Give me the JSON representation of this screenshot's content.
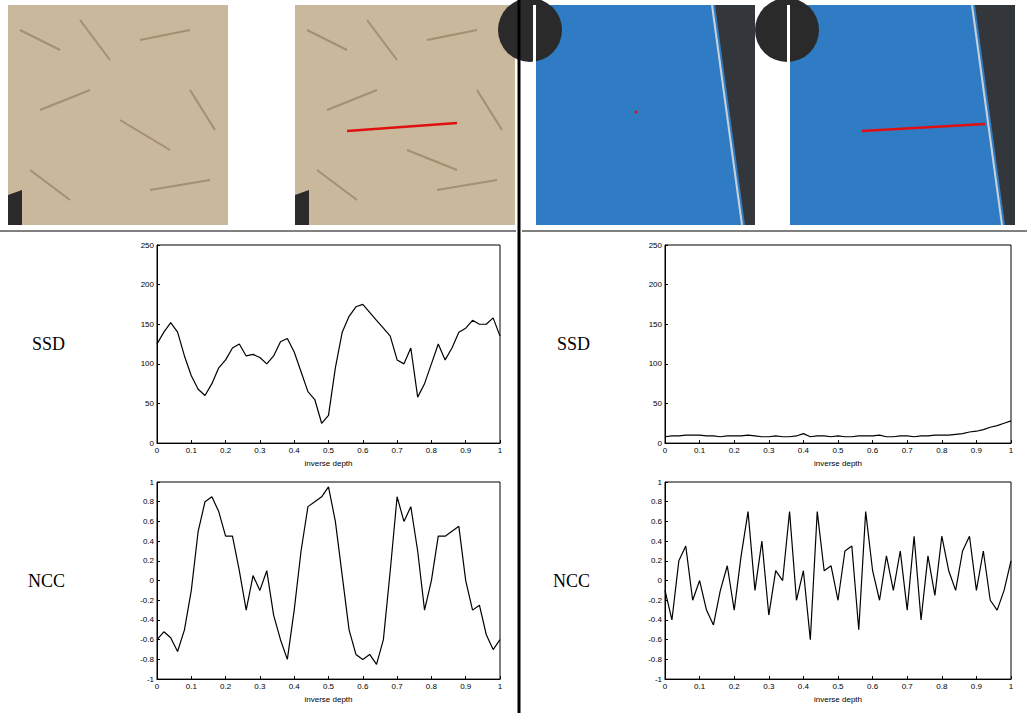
{
  "chart_data": [
    {
      "type": "line",
      "ylabel": "SSD",
      "xlabel": "inverse depth",
      "color": "#000000",
      "grid": false,
      "x": [
        0,
        0.02,
        0.04,
        0.06,
        0.08,
        0.1,
        0.12,
        0.14,
        0.16,
        0.18,
        0.2,
        0.22,
        0.24,
        0.26,
        0.28,
        0.3,
        0.32,
        0.34,
        0.36,
        0.38,
        0.4,
        0.42,
        0.44,
        0.46,
        0.48,
        0.5,
        0.52,
        0.54,
        0.56,
        0.58,
        0.6,
        0.62,
        0.64,
        0.66,
        0.68,
        0.7,
        0.72,
        0.74,
        0.76,
        0.78,
        0.8,
        0.82,
        0.84,
        0.86,
        0.88,
        0.9,
        0.92,
        0.94,
        0.96,
        0.98,
        1
      ],
      "values": [
        125,
        140,
        152,
        140,
        110,
        85,
        68,
        60,
        75,
        95,
        105,
        120,
        125,
        110,
        112,
        108,
        100,
        110,
        128,
        132,
        115,
        90,
        65,
        55,
        25,
        35,
        95,
        140,
        160,
        172,
        175,
        165,
        155,
        145,
        135,
        105,
        100,
        120,
        58,
        75,
        100,
        125,
        105,
        120,
        140,
        145,
        155,
        150,
        150,
        158,
        135
      ],
      "xlim": [
        0,
        1
      ],
      "xticks": [
        0,
        0.1,
        0.2,
        0.3,
        0.4,
        0.5,
        0.6,
        0.7,
        0.8,
        0.9,
        1
      ],
      "ylim": [
        0,
        250
      ],
      "yticks": [
        0,
        50,
        100,
        150,
        200,
        250
      ]
    },
    {
      "type": "line",
      "ylabel": "NCC",
      "xlabel": "inverse depth",
      "color": "#000000",
      "grid": false,
      "x": [
        0,
        0.02,
        0.04,
        0.06,
        0.08,
        0.1,
        0.12,
        0.14,
        0.16,
        0.18,
        0.2,
        0.22,
        0.24,
        0.26,
        0.28,
        0.3,
        0.32,
        0.34,
        0.36,
        0.38,
        0.4,
        0.42,
        0.44,
        0.46,
        0.48,
        0.5,
        0.52,
        0.54,
        0.56,
        0.58,
        0.6,
        0.62,
        0.64,
        0.66,
        0.68,
        0.7,
        0.72,
        0.74,
        0.76,
        0.78,
        0.8,
        0.82,
        0.84,
        0.86,
        0.88,
        0.9,
        0.92,
        0.94,
        0.96,
        0.98,
        1
      ],
      "values": [
        -0.6,
        -0.52,
        -0.58,
        -0.72,
        -0.5,
        -0.1,
        0.5,
        0.8,
        0.85,
        0.7,
        0.45,
        0.45,
        0.1,
        -0.3,
        0.05,
        -0.1,
        0.1,
        -0.35,
        -0.6,
        -0.8,
        -0.3,
        0.3,
        0.75,
        0.8,
        0.85,
        0.95,
        0.6,
        0.05,
        -0.5,
        -0.75,
        -0.8,
        -0.75,
        -0.85,
        -0.6,
        0.1,
        0.85,
        0.6,
        0.75,
        0.3,
        -0.3,
        0.0,
        0.45,
        0.45,
        0.5,
        0.55,
        0.0,
        -0.3,
        -0.25,
        -0.55,
        -0.7,
        -0.6
      ],
      "xlim": [
        0,
        1
      ],
      "xticks": [
        0,
        0.1,
        0.2,
        0.3,
        0.4,
        0.5,
        0.6,
        0.7,
        0.8,
        0.9,
        1
      ],
      "ylim": [
        -1,
        1
      ],
      "yticks": [
        -1,
        -0.8,
        -0.6,
        -0.4,
        -0.2,
        0,
        0.2,
        0.4,
        0.6,
        0.8,
        1
      ]
    },
    {
      "type": "line",
      "ylabel": "SSD",
      "xlabel": "inverse depth",
      "color": "#000000",
      "grid": false,
      "x": [
        0,
        0.02,
        0.04,
        0.06,
        0.08,
        0.1,
        0.12,
        0.14,
        0.16,
        0.18,
        0.2,
        0.22,
        0.24,
        0.26,
        0.28,
        0.3,
        0.32,
        0.34,
        0.36,
        0.38,
        0.4,
        0.42,
        0.44,
        0.46,
        0.48,
        0.5,
        0.52,
        0.54,
        0.56,
        0.58,
        0.6,
        0.62,
        0.64,
        0.66,
        0.68,
        0.7,
        0.72,
        0.74,
        0.76,
        0.78,
        0.8,
        0.82,
        0.84,
        0.86,
        0.88,
        0.9,
        0.92,
        0.94,
        0.96,
        0.98,
        1
      ],
      "values": [
        8,
        9,
        9,
        10,
        10,
        10,
        9,
        9,
        8,
        9,
        9,
        9,
        10,
        9,
        8,
        8,
        9,
        8,
        8,
        9,
        12,
        8,
        9,
        9,
        8,
        9,
        8,
        8,
        9,
        9,
        9,
        10,
        8,
        8,
        9,
        9,
        8,
        9,
        9,
        10,
        10,
        10,
        11,
        12,
        14,
        15,
        17,
        20,
        22,
        25,
        28
      ],
      "xlim": [
        0,
        1
      ],
      "xticks": [
        0,
        0.1,
        0.2,
        0.3,
        0.4,
        0.5,
        0.6,
        0.7,
        0.8,
        0.9,
        1
      ],
      "ylim": [
        0,
        250
      ],
      "yticks": [
        0,
        50,
        100,
        150,
        200,
        250
      ]
    },
    {
      "type": "line",
      "ylabel": "NCC",
      "xlabel": "inverse depth",
      "color": "#000000",
      "grid": false,
      "x": [
        0,
        0.02,
        0.04,
        0.06,
        0.08,
        0.1,
        0.12,
        0.14,
        0.16,
        0.18,
        0.2,
        0.22,
        0.24,
        0.26,
        0.28,
        0.3,
        0.32,
        0.34,
        0.36,
        0.38,
        0.4,
        0.42,
        0.44,
        0.46,
        0.48,
        0.5,
        0.52,
        0.54,
        0.56,
        0.58,
        0.6,
        0.62,
        0.64,
        0.66,
        0.68,
        0.7,
        0.72,
        0.74,
        0.76,
        0.78,
        0.8,
        0.82,
        0.84,
        0.86,
        0.88,
        0.9,
        0.92,
        0.94,
        0.96,
        0.98,
        1
      ],
      "values": [
        -0.1,
        -0.4,
        0.2,
        0.35,
        -0.2,
        0.0,
        -0.3,
        -0.45,
        -0.1,
        0.15,
        -0.3,
        0.25,
        0.7,
        -0.1,
        0.4,
        -0.35,
        0.1,
        0.0,
        0.7,
        -0.2,
        0.1,
        -0.6,
        0.7,
        0.1,
        0.15,
        -0.2,
        0.3,
        0.35,
        -0.5,
        0.7,
        0.1,
        -0.2,
        0.25,
        -0.1,
        0.3,
        -0.3,
        0.45,
        -0.4,
        0.25,
        -0.15,
        0.45,
        0.1,
        -0.1,
        0.3,
        0.45,
        -0.1,
        0.3,
        -0.2,
        -0.3,
        -0.1,
        0.2
      ],
      "xlim": [
        0,
        1
      ],
      "xticks": [
        0,
        0.1,
        0.2,
        0.3,
        0.4,
        0.5,
        0.6,
        0.7,
        0.8,
        0.9,
        1
      ],
      "ylim": [
        -1,
        1
      ],
      "yticks": [
        -1,
        -0.8,
        -0.6,
        -0.4,
        -0.2,
        0,
        0.2,
        0.4,
        0.6,
        0.8,
        1
      ]
    }
  ]
}
